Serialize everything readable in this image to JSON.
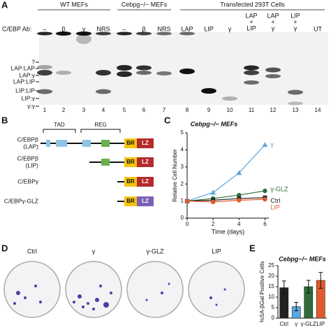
{
  "panel_a": {
    "label": "A",
    "group_headers": [
      "WT MEFs",
      "Cebpg−/− MEFs",
      "Transfected 293T Cells"
    ],
    "antibody_label": "C/EBP Ab:",
    "lanes": [
      [
        "–"
      ],
      [
        "β"
      ],
      [
        "γ"
      ],
      [
        "NRS"
      ],
      [
        "–"
      ],
      [
        "β"
      ],
      [
        "NRS"
      ],
      [
        "LAP"
      ],
      [
        "LIP"
      ],
      [
        "γ"
      ],
      [
        "LAP",
        "+",
        "LIP"
      ],
      [
        "LAP",
        "+",
        "γ"
      ],
      [
        "LIP",
        "+",
        "γ"
      ],
      [
        "UT"
      ]
    ],
    "lane_numbers": [
      1,
      2,
      3,
      4,
      5,
      6,
      7,
      8,
      9,
      10,
      11,
      12,
      13,
      14
    ],
    "band_labels": [
      "?",
      "LAP:LAP",
      "LAP:γ",
      "LAP:LIP",
      "LIP:LIP",
      "LIP:γ",
      "γ:γ"
    ]
  },
  "panel_b": {
    "label": "B",
    "regions": [
      "TAD",
      "REG"
    ],
    "constructs": [
      [
        "C/EBPβ",
        "(LAP)"
      ],
      [
        "C/EBPβ",
        "(LIP)"
      ],
      [
        "C/EBPγ"
      ],
      [
        "C/EBPγ-GLZ"
      ]
    ],
    "domains": [
      "BR",
      "LZ"
    ]
  },
  "chart_data": [
    {
      "type": "line",
      "panel": "C",
      "title": "Cebpg−/− MEFs",
      "x_label": "Time (days)",
      "y_label": "Relative Cell Number",
      "x": [
        0,
        2,
        4,
        6
      ],
      "xlim": [
        0,
        6.3
      ],
      "xticks": [
        0,
        2,
        4,
        6
      ],
      "ylim": [
        0,
        5
      ],
      "yticks": [
        0,
        1,
        2,
        3,
        4,
        5
      ],
      "series": [
        {
          "name": "γ",
          "color": "#5aa7e0",
          "marker": "triangle",
          "values": [
            1,
            1.5,
            2.65,
            4.3
          ]
        },
        {
          "name": "γ-GLZ",
          "color": "#2f6b3b",
          "marker": "circle",
          "values": [
            1,
            1.15,
            1.35,
            1.6
          ]
        },
        {
          "name": "Ctrl",
          "color": "#222222",
          "marker": "square",
          "values": [
            1,
            1.05,
            1.15,
            1.2
          ]
        },
        {
          "name": "LIP",
          "color": "#e05a2b",
          "marker": "circle",
          "values": [
            1,
            0.95,
            1.05,
            1.1
          ]
        }
      ]
    },
    {
      "type": "bar",
      "panel": "E",
      "title": "Cebpg−/− MEFs",
      "y_label": "%SA-βGal Positive Cells",
      "categories": [
        "Ctrl",
        "γ",
        "γ-GLZ",
        "LIP"
      ],
      "values": [
        14.5,
        5.5,
        15,
        18
      ],
      "errors": [
        3.2,
        2,
        3,
        3.8
      ],
      "colors": [
        "#222222",
        "#5aa7e0",
        "#2f6b3b",
        "#e05a2b"
      ],
      "ylim": [
        0,
        25
      ],
      "yticks": [
        0,
        5,
        10,
        15,
        20,
        25
      ]
    }
  ],
  "panel_d": {
    "label": "D",
    "plates": [
      "Ctrl",
      "γ",
      "γ-GLZ",
      "LIP"
    ]
  }
}
